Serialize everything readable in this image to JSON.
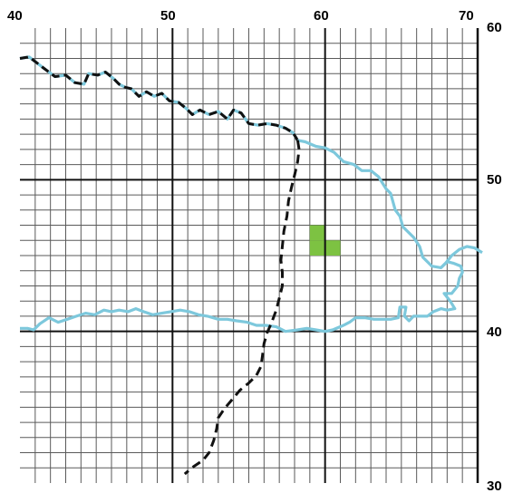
{
  "map": {
    "x_labels": [
      "40",
      "50",
      "60",
      "70"
    ],
    "y_labels": [
      "60",
      "50",
      "40",
      "30"
    ],
    "x_range": [
      40,
      70
    ],
    "y_range": [
      30,
      60
    ],
    "minor_step": 1,
    "major_step": 10,
    "colors": {
      "grid_minor": "#5a5a5a",
      "grid_major": "#111111",
      "coastline": "#7dc8dc",
      "boundary": "#111111",
      "highlight": "#7dc242"
    },
    "coastline_north_dashed": [
      [
        40,
        58.0
      ],
      [
        40.6,
        58.1
      ],
      [
        41.5,
        57.4
      ],
      [
        42.3,
        56.8
      ],
      [
        43.0,
        56.9
      ],
      [
        43.6,
        56.4
      ],
      [
        44.2,
        56.3
      ],
      [
        44.5,
        57.0
      ],
      [
        45.1,
        56.9
      ],
      [
        45.6,
        57.1
      ],
      [
        46.1,
        56.7
      ],
      [
        46.5,
        56.3
      ],
      [
        46.9,
        56.1
      ],
      [
        47.3,
        56.0
      ],
      [
        47.8,
        55.5
      ],
      [
        48.3,
        55.8
      ],
      [
        48.8,
        55.5
      ],
      [
        49.3,
        55.7
      ],
      [
        49.8,
        55.2
      ],
      [
        50.4,
        55.1
      ],
      [
        50.9,
        54.7
      ],
      [
        51.3,
        54.3
      ],
      [
        51.8,
        54.6
      ],
      [
        52.4,
        54.3
      ],
      [
        53.0,
        54.5
      ],
      [
        53.6,
        54.0
      ],
      [
        54.0,
        54.6
      ],
      [
        54.5,
        54.4
      ],
      [
        55.0,
        53.7
      ],
      [
        55.6,
        53.6
      ],
      [
        56.2,
        53.7
      ],
      [
        56.8,
        53.6
      ],
      [
        57.4,
        53.4
      ],
      [
        57.9,
        53.1
      ],
      [
        58.2,
        52.6
      ]
    ],
    "coastline_north_solid": [
      [
        58.2,
        52.6
      ],
      [
        58.7,
        52.5
      ],
      [
        59.4,
        52.2
      ],
      [
        60.0,
        52.1
      ],
      [
        60.6,
        51.8
      ],
      [
        61.2,
        51.2
      ],
      [
        61.9,
        51.0
      ],
      [
        62.4,
        50.6
      ],
      [
        63.0,
        50.6
      ],
      [
        63.5,
        50.2
      ],
      [
        64.0,
        49.4
      ],
      [
        64.3,
        49.1
      ],
      [
        64.6,
        48.0
      ],
      [
        64.9,
        47.6
      ],
      [
        65.1,
        46.9
      ],
      [
        65.3,
        46.7
      ],
      [
        65.8,
        46.2
      ],
      [
        66.2,
        45.6
      ],
      [
        66.4,
        44.9
      ],
      [
        67.0,
        44.3
      ],
      [
        67.6,
        44.2
      ],
      [
        67.9,
        44.5
      ],
      [
        68.3,
        45.0
      ],
      [
        68.8,
        45.4
      ],
      [
        69.3,
        45.6
      ],
      [
        69.8,
        45.5
      ],
      [
        70.3,
        45.2
      ]
    ],
    "coastline_loop": [
      [
        67.6,
        44.2
      ],
      [
        68.0,
        44.6
      ],
      [
        68.4,
        44.5
      ],
      [
        68.9,
        44.3
      ],
      [
        69.0,
        43.9
      ],
      [
        68.8,
        43.5
      ],
      [
        68.7,
        43.0
      ],
      [
        68.3,
        42.5
      ],
      [
        67.8,
        42.5
      ],
      [
        68.2,
        42.0
      ],
      [
        68.5,
        41.5
      ],
      [
        68.0,
        41.4
      ],
      [
        67.6,
        41.5
      ],
      [
        67.1,
        41.3
      ],
      [
        66.7,
        41.0
      ],
      [
        66.2,
        41.0
      ],
      [
        65.8,
        41.0
      ],
      [
        65.5,
        40.7
      ],
      [
        65.2,
        41.0
      ],
      [
        65.3,
        41.6
      ],
      [
        64.9,
        41.6
      ],
      [
        64.8,
        40.9
      ],
      [
        64.3,
        40.8
      ],
      [
        63.7,
        40.8
      ],
      [
        63.2,
        40.8
      ],
      [
        62.6,
        40.9
      ],
      [
        62.0,
        40.9
      ],
      [
        61.6,
        40.6
      ],
      [
        61.2,
        40.4
      ],
      [
        60.5,
        40.1
      ],
      [
        60.0,
        40.0
      ],
      [
        59.4,
        40.1
      ],
      [
        58.8,
        40.2
      ],
      [
        58.2,
        40.1
      ],
      [
        57.4,
        40.0
      ],
      [
        56.8,
        40.3
      ],
      [
        56.1,
        40.4
      ],
      [
        55.5,
        40.4
      ],
      [
        54.9,
        40.6
      ],
      [
        54.2,
        40.7
      ],
      [
        53.6,
        40.8
      ],
      [
        53.0,
        40.8
      ],
      [
        52.3,
        41.0
      ],
      [
        51.7,
        41.1
      ],
      [
        51.1,
        41.3
      ],
      [
        50.5,
        41.4
      ],
      [
        49.9,
        41.3
      ],
      [
        49.3,
        41.2
      ],
      [
        48.7,
        41.1
      ],
      [
        48.1,
        41.3
      ],
      [
        47.6,
        41.5
      ],
      [
        47.1,
        41.3
      ],
      [
        46.5,
        41.4
      ],
      [
        46.0,
        41.3
      ],
      [
        45.5,
        41.4
      ],
      [
        44.9,
        41.1
      ],
      [
        44.3,
        41.2
      ],
      [
        43.7,
        41.0
      ],
      [
        43.1,
        40.8
      ],
      [
        42.5,
        40.6
      ],
      [
        41.9,
        40.9
      ],
      [
        41.3,
        40.5
      ],
      [
        40.9,
        40.1
      ],
      [
        40.5,
        40.2
      ],
      [
        40,
        40.2
      ]
    ],
    "boundary_dashed": [
      [
        58.2,
        52.6
      ],
      [
        58.3,
        52.0
      ],
      [
        58.2,
        51.2
      ],
      [
        58.0,
        50.3
      ],
      [
        57.8,
        49.5
      ],
      [
        57.6,
        48.6
      ],
      [
        57.5,
        47.6
      ],
      [
        57.3,
        46.6
      ],
      [
        57.2,
        45.6
      ],
      [
        57.1,
        44.7
      ],
      [
        57.2,
        43.9
      ],
      [
        57.2,
        43.0
      ],
      [
        57.0,
        42.2
      ],
      [
        56.8,
        41.4
      ],
      [
        56.5,
        40.6
      ],
      [
        56.2,
        39.9
      ],
      [
        56.0,
        39.2
      ],
      [
        55.9,
        38.4
      ],
      [
        55.8,
        37.7
      ],
      [
        55.5,
        37.1
      ],
      [
        55.0,
        36.6
      ],
      [
        54.4,
        36.1
      ],
      [
        53.9,
        35.5
      ],
      [
        53.4,
        34.9
      ],
      [
        53.0,
        34.3
      ],
      [
        52.9,
        33.6
      ],
      [
        52.7,
        32.8
      ],
      [
        52.4,
        32.0
      ],
      [
        52.0,
        31.5
      ],
      [
        51.4,
        31.1
      ],
      [
        50.8,
        30.6
      ]
    ],
    "highlight_cells": [
      [
        59,
        46
      ],
      [
        59,
        45
      ],
      [
        60,
        45
      ]
    ]
  }
}
